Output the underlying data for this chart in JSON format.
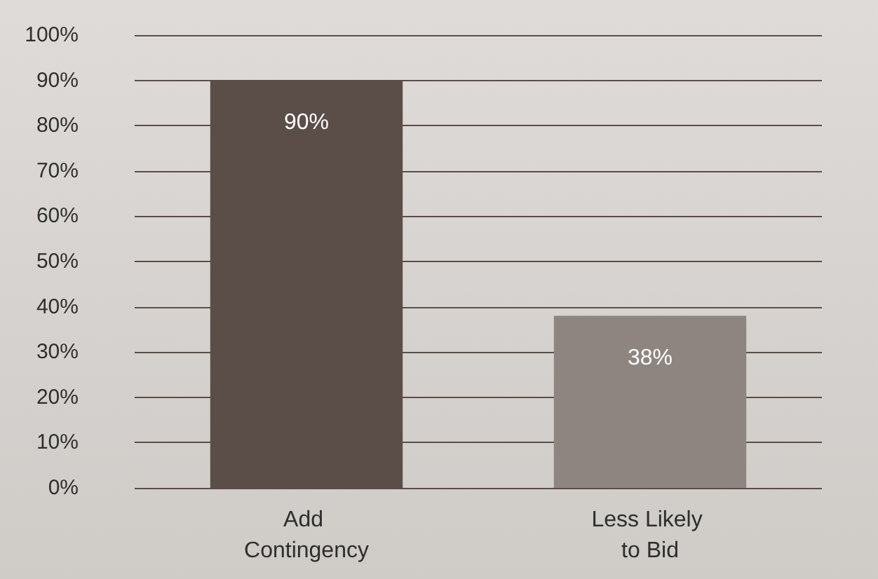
{
  "chart_data": {
    "type": "bar",
    "categories": [
      "Add Contingency",
      "Less Likely to Bid"
    ],
    "values": [
      90,
      38
    ],
    "colors": [
      "#5b4d48",
      "#8e8581"
    ],
    "value_labels": [
      "90%",
      "38%"
    ],
    "ylim": [
      0,
      100
    ],
    "yticks": [
      {
        "value": 0,
        "label": "0%"
      },
      {
        "value": 10,
        "label": "10%"
      },
      {
        "value": 20,
        "label": "20%"
      },
      {
        "value": 30,
        "label": "30%"
      },
      {
        "value": 40,
        "label": "40%"
      },
      {
        "value": 50,
        "label": "50%"
      },
      {
        "value": 60,
        "label": "60%"
      },
      {
        "value": 70,
        "label": "70%"
      },
      {
        "value": 80,
        "label": "80%"
      },
      {
        "value": 90,
        "label": "90%"
      },
      {
        "value": 100,
        "label": "100%"
      }
    ],
    "grid": "y"
  }
}
